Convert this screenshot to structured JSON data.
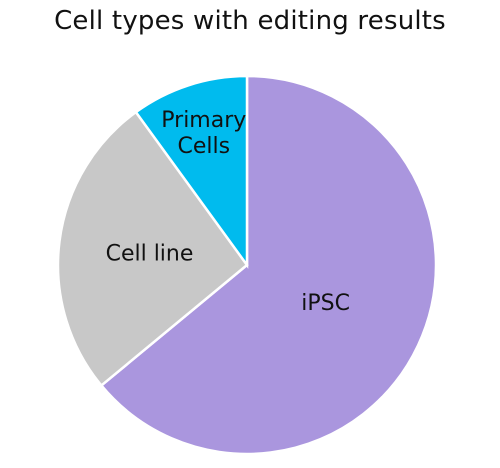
{
  "chart_data": {
    "type": "pie",
    "title": "Cell types with editing results",
    "slices": [
      {
        "label": "iPSC",
        "value": 64,
        "color": "#aa96de"
      },
      {
        "label": "Cell line",
        "value": 26,
        "color": "#c8c8c8"
      },
      {
        "label": "Primary Cells",
        "value": 10,
        "color": "#00bbee"
      }
    ],
    "start": "top",
    "direction": "clockwise",
    "legend": "none"
  }
}
